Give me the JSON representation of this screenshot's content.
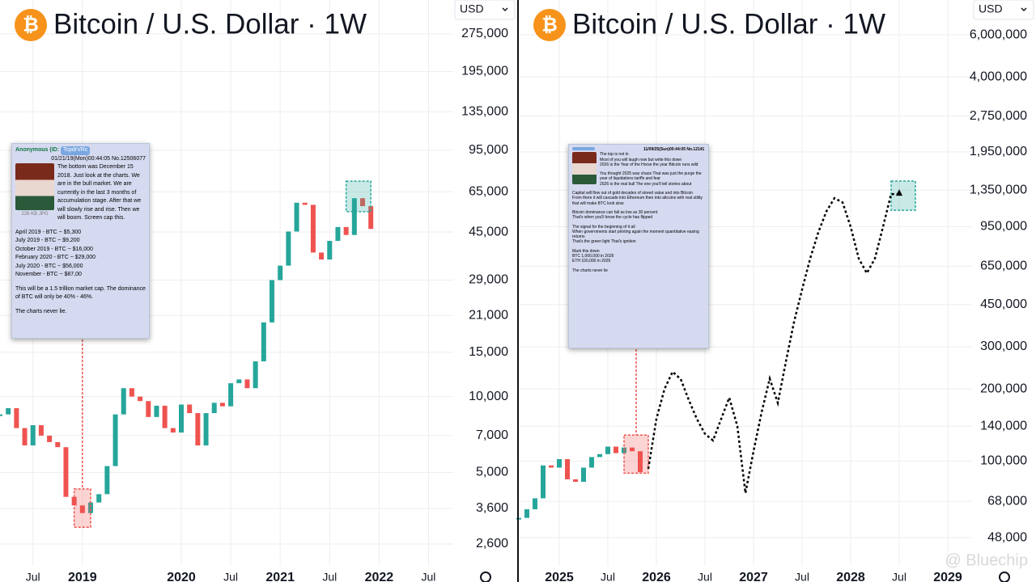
{
  "chart_data": [
    {
      "type": "candlestick",
      "title": "Bitcoin / U.S. Dollar · 1W",
      "currency": "USD",
      "log": true,
      "grid": true,
      "up_color": "#26a69a",
      "down_color": "#ef5350",
      "x": [
        "2018-03",
        "2018-04",
        "2018-05",
        "2018-06",
        "2018-07",
        "2018-08",
        "2018-09",
        "2018-10",
        "2018-11",
        "2018-12",
        "2019-01",
        "2019-02",
        "2019-03",
        "2019-04",
        "2019-05",
        "2019-06",
        "2019-07",
        "2019-08",
        "2019-09",
        "2019-10",
        "2019-11",
        "2019-12",
        "2020-01",
        "2020-02",
        "2020-03",
        "2020-04",
        "2020-05",
        "2020-06",
        "2020-07",
        "2020-08",
        "2020-09",
        "2020-10",
        "2020-11",
        "2020-12",
        "2021-01",
        "2021-02",
        "2021-03",
        "2021-04",
        "2021-05",
        "2021-06",
        "2021-07",
        "2021-08",
        "2021-09",
        "2021-10",
        "2021-11",
        "2021-12"
      ],
      "values": [
        8500,
        9000,
        7500,
        6400,
        7700,
        7000,
        6600,
        6300,
        4000,
        3700,
        3450,
        3800,
        4100,
        5300,
        8500,
        10800,
        10000,
        9600,
        8300,
        9200,
        7500,
        7200,
        9300,
        8600,
        6400,
        8600,
        9450,
        9150,
        11300,
        11700,
        10800,
        13800,
        19700,
        29000,
        33100,
        45200,
        58800,
        57700,
        37300,
        35000,
        41500,
        47100,
        43800,
        61300,
        57000,
        46300
      ],
      "xlim": [
        "2018-03",
        "2022-10"
      ],
      "ylim": [
        2130,
        375000
      ],
      "yticks": [
        {
          "value": 275000,
          "label": "275,000"
        },
        {
          "value": 195000,
          "label": "195,000"
        },
        {
          "value": 135000,
          "label": "135,000"
        },
        {
          "value": 95000,
          "label": "95,000"
        },
        {
          "value": 65000,
          "label": "65,000"
        },
        {
          "value": 45000,
          "label": "45,000"
        },
        {
          "value": 29000,
          "label": "29,000"
        },
        {
          "value": 21000,
          "label": "21,000"
        },
        {
          "value": 15000,
          "label": "15,000"
        },
        {
          "value": 10000,
          "label": "10,000"
        },
        {
          "value": 7000,
          "label": "7,000"
        },
        {
          "value": 5000,
          "label": "5,000"
        },
        {
          "value": 3600,
          "label": "3,600"
        },
        {
          "value": 2600,
          "label": "2,600"
        }
      ],
      "xticks": [
        {
          "value": "2018-07",
          "label": "Jul"
        },
        {
          "value": "2019-01",
          "label": "2019"
        },
        {
          "value": "2020-01",
          "label": "2020"
        },
        {
          "value": "2020-07",
          "label": "Jul"
        },
        {
          "value": "2021-01",
          "label": "2021"
        },
        {
          "value": "2021-07",
          "label": "Jul"
        },
        {
          "value": "2022-01",
          "label": "2022"
        },
        {
          "value": "2022-07",
          "label": "Jul"
        }
      ],
      "highlights": [
        {
          "x": [
            "2018-12",
            "2019-02"
          ],
          "y": [
            3030,
            4300
          ],
          "color": "#ef5350"
        },
        {
          "x": [
            "2021-09",
            "2021-12"
          ],
          "y": [
            54200,
            71600
          ],
          "color": "#26a69a"
        }
      ]
    },
    {
      "type": "candlestick",
      "title": "Bitcoin / U.S. Dollar · 1W",
      "currency": "USD",
      "log": true,
      "grid": true,
      "up_color": "#26a69a",
      "down_color": "#ef5350",
      "x": [
        "2024-08",
        "2024-09",
        "2024-10",
        "2024-11",
        "2024-12",
        "2025-01",
        "2025-02",
        "2025-03",
        "2025-04",
        "2025-05",
        "2025-06",
        "2025-07",
        "2025-08",
        "2025-09",
        "2025-10",
        "2025-11"
      ],
      "values": [
        58000,
        63000,
        70000,
        96000,
        94000,
        102000,
        84000,
        82000,
        94000,
        104000,
        107000,
        115000,
        108000,
        114000,
        110000,
        90000
      ],
      "projection": {
        "color": "#000000",
        "x": [
          "2025-12",
          "2026-01",
          "2026-02",
          "2026-03",
          "2026-04",
          "2026-05",
          "2026-06",
          "2026-07",
          "2026-08",
          "2026-09",
          "2026-10",
          "2026-11",
          "2026-12",
          "2027-01",
          "2027-02",
          "2027-03",
          "2027-04",
          "2027-05",
          "2027-06",
          "2027-07",
          "2027-08",
          "2027-09",
          "2027-10",
          "2027-11",
          "2027-12",
          "2028-01",
          "2028-02",
          "2028-03",
          "2028-04",
          "2028-05",
          "2028-06",
          "2028-07"
        ],
        "values": [
          93000,
          150000,
          200000,
          236000,
          220000,
          180000,
          150000,
          130000,
          122000,
          150000,
          184000,
          140000,
          73600,
          110000,
          160000,
          221000,
          175000,
          260000,
          380000,
          520000,
          700000,
          900000,
          1100000,
          1250000,
          1200000,
          950000,
          700000,
          608000,
          700000,
          950000,
          1300000,
          1300000
        ]
      },
      "xlim": [
        "2024-08",
        "2029-04"
      ],
      "ylim": [
        36600,
        8380000
      ],
      "yticks": [
        {
          "value": 6000000,
          "label": "6,000,000"
        },
        {
          "value": 4000000,
          "label": "4,000,000"
        },
        {
          "value": 2750000,
          "label": "2,750,000"
        },
        {
          "value": 1950000,
          "label": "1,950,000"
        },
        {
          "value": 1350000,
          "label": "1,350,000"
        },
        {
          "value": 950000,
          "label": "950,000"
        },
        {
          "value": 650000,
          "label": "650,000"
        },
        {
          "value": 450000,
          "label": "450,000"
        },
        {
          "value": 300000,
          "label": "300,000"
        },
        {
          "value": 200000,
          "label": "200,000"
        },
        {
          "value": 140000,
          "label": "140,000"
        },
        {
          "value": 100000,
          "label": "100,000"
        },
        {
          "value": 68000,
          "label": "68,000"
        },
        {
          "value": 48000,
          "label": "48,000"
        }
      ],
      "xticks": [
        {
          "value": "2025-01",
          "label": "2025"
        },
        {
          "value": "2025-07",
          "label": "Jul"
        },
        {
          "value": "2026-01",
          "label": "2026"
        },
        {
          "value": "2026-07",
          "label": "Jul"
        },
        {
          "value": "2027-01",
          "label": "2027"
        },
        {
          "value": "2027-07",
          "label": "Jul"
        },
        {
          "value": "2028-01",
          "label": "2028"
        },
        {
          "value": "2028-07",
          "label": "Jul"
        },
        {
          "value": "2029-01",
          "label": "2029"
        }
      ],
      "highlights": [
        {
          "x": [
            "2025-09",
            "2025-12"
          ],
          "y": [
            89100,
            128500
          ],
          "color": "#ef5350"
        },
        {
          "x": [
            "2028-06",
            "2028-09"
          ],
          "y": [
            1113000,
            1473000
          ],
          "color": "#26a69a"
        }
      ]
    }
  ],
  "posts": [
    {
      "name": "Anonymous (ID:",
      "id": "TcpdrVRc",
      "meta": "01/21/19(Mon)00:44:05 No.12506077",
      "file": "226 KB JPG",
      "blocks": [
        [
          "The bottom was December 15 2018. Just look at the charts. We are in the bull market. We are currently in the last 3 months of accumulation stage. After that we will slowly rise and rise. Then we will boom. Screen cap this."
        ],
        [
          "April 2019 - BTC ~ $5,300",
          "July 2019 - BTC ~ $9,200",
          "October 2019 - BTC ~ $16,000",
          "February 2020 - BTC ~ $29,000",
          "July 2020 - BTC ~ $56,000",
          "November - BTC ~ $87,00"
        ],
        [
          "This will be a 1.5 trillion market cap. The dominance of BTC will only be 40% - 46%."
        ],
        [
          "The charts never lie."
        ]
      ]
    },
    {
      "meta": "11/09/25(Sun)00:44:05 No.12141",
      "blocks": [
        [
          "The top is not in",
          "Most of you will laugh now but write this down",
          "2026 is the Year of the Horse the year Bitcoin runs wild"
        ],
        [
          "You thought 2025 was chaos That was just the purge the year of liquidations tariffs and fear",
          "2026 is the real bull The one you'll tell stories about"
        ],
        [
          "Capital will flow out of gold decades of stored value and into Bitcoin",
          "From there it will cascade into Ethereum then into altcoins with real utility that will make BTC look slow"
        ],
        [
          "Bitcoin dominance can fall as low as 30 percent",
          "That's when you'll know the cycle has flipped"
        ],
        [
          "The signal for the beginning of it all",
          "When governments start printing again the moment quantitative easing returns",
          "That's the green light That's ignition"
        ],
        [
          "Mark this down",
          "BTC 1,000,000 in 2026",
          "ETH 100,000 in 2026"
        ],
        [
          "The charts never lie"
        ]
      ]
    }
  ],
  "watermark": "@ Bluechip"
}
